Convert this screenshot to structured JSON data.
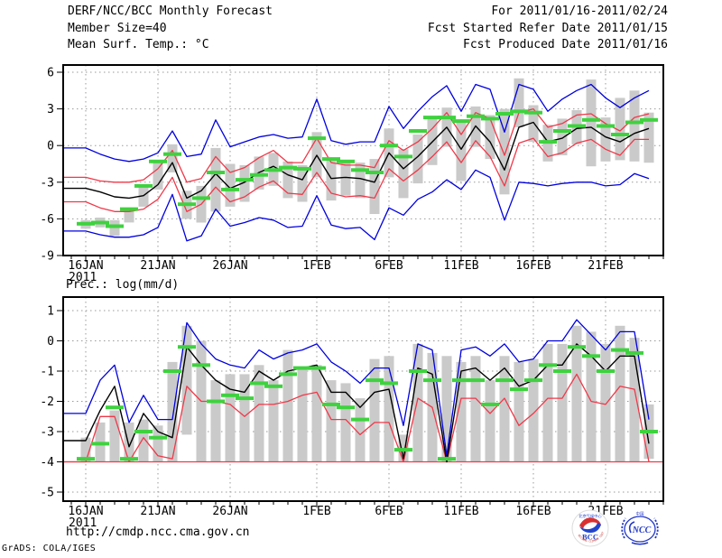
{
  "header": {
    "title": "DERF/NCC/BCC Monthly Forecast",
    "member_size": "Member Size=40",
    "forecast_range": "For 2011/01/16-2011/02/24",
    "refer_date": "Fcst Started Refer Date 2011/01/15",
    "produced_date": "Fcst Produced Date 2011/01/16"
  },
  "footer": {
    "url": "http://cmdp.ncc.cma.gov.cn",
    "credit": "GrADS: COLA/IGES",
    "logos": [
      {
        "name": "bcc-logo",
        "label": "BCC",
        "top_text": "北京气候中心",
        "arc_text": "BEIJING CLIMATE CENTER"
      },
      {
        "name": "ncc-logo",
        "label": "NCC",
        "top_text": "中国"
      }
    ]
  },
  "colors": {
    "blue": "#0000e0",
    "red": "#f03848",
    "green": "#3fd23f",
    "bar_gray": "#cacaca",
    "grid": "#9a9a9a",
    "text": "#000000",
    "bcc_red": "#d93030",
    "bcc_blue": "#2244cc",
    "ncc_blue": "#2238c8"
  },
  "dates": [
    "2011-01-16",
    "2011-01-17",
    "2011-01-18",
    "2011-01-19",
    "2011-01-20",
    "2011-01-21",
    "2011-01-22",
    "2011-01-23",
    "2011-01-24",
    "2011-01-25",
    "2011-01-26",
    "2011-01-27",
    "2011-01-28",
    "2011-01-29",
    "2011-01-30",
    "2011-01-31",
    "2011-02-01",
    "2011-02-02",
    "2011-02-03",
    "2011-02-04",
    "2011-02-05",
    "2011-02-06",
    "2011-02-07",
    "2011-02-08",
    "2011-02-09",
    "2011-02-10",
    "2011-02-11",
    "2011-02-12",
    "2011-02-13",
    "2011-02-14",
    "2011-02-15",
    "2011-02-16",
    "2011-02-17",
    "2011-02-18",
    "2011-02-19",
    "2011-02-20",
    "2011-02-21",
    "2011-02-22",
    "2011-02-23",
    "2011-02-24"
  ],
  "chart_data": [
    {
      "type": "line",
      "name": "temperature-chart",
      "title": "Mean Surf. Temp.: °C",
      "ylim": [
        -9,
        6
      ],
      "grid": true,
      "legend": "none",
      "yticks": [
        {
          "value": 6,
          "label": "6"
        },
        {
          "value": 3,
          "label": "3"
        },
        {
          "value": 0,
          "label": "0"
        },
        {
          "value": -3,
          "label": "-3"
        },
        {
          "value": -6,
          "label": "-6"
        },
        {
          "value": -9,
          "label": "-9"
        }
      ],
      "xticks": [
        {
          "day": 0,
          "label": "16JAN",
          "sublabel": "2011"
        },
        {
          "day": 5,
          "label": "21JAN"
        },
        {
          "day": 10,
          "label": "26JAN"
        },
        {
          "day": 16,
          "label": "1FEB"
        },
        {
          "day": 21,
          "label": "6FEB"
        },
        {
          "day": 26,
          "label": "11FEB"
        },
        {
          "day": 31,
          "label": "16FEB"
        },
        {
          "day": 36,
          "label": "21FEB"
        }
      ],
      "series": [
        {
          "name": "upper-blue",
          "color": "#0000e0",
          "values": [
            -0.2,
            -0.7,
            -1.1,
            -1.3,
            -1.1,
            -0.6,
            1.2,
            -0.9,
            -0.7,
            2.1,
            -0.1,
            0.3,
            0.7,
            0.9,
            0.6,
            0.7,
            3.8,
            0.4,
            0.1,
            0.3,
            0.3,
            3.2,
            1.4,
            2.8,
            4.0,
            4.9,
            2.8,
            5.0,
            4.6,
            1.1,
            5.0,
            4.6,
            2.8,
            3.8,
            4.5,
            5.0,
            3.9,
            3.1,
            3.9,
            4.5
          ]
        },
        {
          "name": "upper-red",
          "color": "#f03848",
          "values": [
            -2.6,
            -2.9,
            -3.0,
            -3.0,
            -2.8,
            -1.9,
            -0.4,
            -3.0,
            -2.7,
            -0.9,
            -2.2,
            -1.8,
            -1.0,
            -0.4,
            -1.4,
            -1.4,
            0.6,
            -1.4,
            -1.6,
            -1.6,
            -1.8,
            0.4,
            -0.4,
            0.3,
            1.4,
            2.7,
            0.9,
            2.7,
            2.2,
            -0.8,
            2.7,
            3.0,
            1.5,
            1.8,
            2.5,
            2.6,
            1.8,
            1.2,
            2.3,
            2.6
          ]
        },
        {
          "name": "lower-red",
          "color": "#f03848",
          "values": [
            -4.6,
            -5.1,
            -5.4,
            -5.4,
            -5.2,
            -4.4,
            -2.6,
            -5.4,
            -4.8,
            -3.4,
            -4.6,
            -4.2,
            -3.4,
            -2.9,
            -3.9,
            -4.0,
            -2.2,
            -3.9,
            -4.2,
            -4.1,
            -4.3,
            -1.9,
            -2.9,
            -2.0,
            -0.9,
            0.3,
            -1.4,
            0.4,
            -0.9,
            -3.3,
            0.2,
            0.6,
            -0.9,
            -0.6,
            0.2,
            0.5,
            -0.3,
            -0.8,
            0.5,
            0.5
          ]
        },
        {
          "name": "lower-blue",
          "color": "#0000e0",
          "values": [
            -7.0,
            -7.3,
            -7.5,
            -7.5,
            -7.3,
            -6.7,
            -4.0,
            -7.8,
            -7.4,
            -5.2,
            -6.6,
            -6.3,
            -5.9,
            -6.1,
            -6.7,
            -6.6,
            -4.1,
            -6.5,
            -6.8,
            -6.7,
            -7.7,
            -5.1,
            -5.7,
            -4.4,
            -3.8,
            -2.8,
            -3.6,
            -2.0,
            -2.6,
            -6.1,
            -3.0,
            -3.1,
            -3.3,
            -3.1,
            -3.0,
            -3.0,
            -3.3,
            -3.2,
            -2.3,
            -2.7
          ]
        },
        {
          "name": "mean-black",
          "color": "#000000",
          "values": [
            -3.5,
            -3.8,
            -4.2,
            -4.3,
            -4.1,
            -3.2,
            -1.4,
            -4.3,
            -3.7,
            -2.3,
            -3.5,
            -3.0,
            -2.2,
            -1.7,
            -2.4,
            -2.8,
            -0.8,
            -2.7,
            -2.6,
            -2.7,
            -3.0,
            -0.6,
            -1.9,
            -0.9,
            0.3,
            1.5,
            -0.3,
            1.6,
            0.3,
            -2.0,
            1.5,
            1.9,
            0.3,
            0.6,
            1.4,
            1.5,
            0.7,
            0.3,
            1.0,
            1.4
          ]
        }
      ],
      "obs": {
        "name": "observation-green",
        "color": "#3fd23f",
        "values": [
          -6.4,
          -6.3,
          -6.6,
          -5.2,
          -3.3,
          -1.3,
          -0.7,
          -4.8,
          -4.3,
          -2.2,
          -3.6,
          -2.8,
          -2.4,
          -2.0,
          -1.8,
          -1.9,
          0.6,
          -1.1,
          -1.3,
          -2.0,
          -2.2,
          0.0,
          -0.9,
          1.2,
          2.3,
          2.3,
          2.0,
          2.4,
          2.2,
          2.6,
          2.8,
          2.7,
          0.3,
          1.2,
          1.6,
          2.1,
          1.6,
          0.9,
          1.9,
          2.1
        ]
      },
      "bars": {
        "name": "member-spread",
        "color": "#cacaca",
        "low": [
          -6.8,
          -6.7,
          -7.4,
          -6.3,
          -5.0,
          -3.6,
          -2.2,
          -6.0,
          -6.3,
          -5.4,
          -5.0,
          -4.6,
          -3.6,
          -3.3,
          -4.3,
          -4.6,
          -2.6,
          -4.5,
          -4.1,
          -4.3,
          -5.6,
          -2.6,
          -4.3,
          -3.1,
          -1.6,
          -0.1,
          -2.9,
          -0.1,
          -1.1,
          -4.0,
          1.5,
          0.3,
          -1.3,
          -0.8,
          0.1,
          -1.7,
          -1.3,
          -1.2,
          -1.3,
          -1.4
        ],
        "high": [
          -6.1,
          -5.9,
          -6.1,
          -5.1,
          -3.3,
          -1.3,
          0.1,
          -3.7,
          -3.3,
          -0.2,
          -1.5,
          -1.6,
          -0.9,
          -0.6,
          -1.3,
          -1.6,
          1.1,
          -1.1,
          -1.3,
          -1.4,
          -1.1,
          1.4,
          -0.3,
          0.9,
          2.4,
          3.1,
          2.1,
          3.2,
          2.5,
          3.0,
          5.5,
          3.3,
          1.7,
          2.2,
          2.9,
          5.4,
          2.3,
          3.9,
          4.5,
          2.7
        ]
      }
    },
    {
      "type": "line",
      "name": "precipitation-chart",
      "title": "Prec.: log(mm/d)",
      "ylim": [
        -5,
        1
      ],
      "grid": true,
      "legend": "none",
      "floor_value": -4,
      "yticks": [
        {
          "value": 1,
          "label": "1"
        },
        {
          "value": 0,
          "label": "0"
        },
        {
          "value": -1,
          "label": "-1"
        },
        {
          "value": -2,
          "label": "-2"
        },
        {
          "value": -3,
          "label": "-3"
        },
        {
          "value": -4,
          "label": "-4"
        },
        {
          "value": -5,
          "label": "-5"
        }
      ],
      "xticks": [
        {
          "day": 0,
          "label": "16JAN",
          "sublabel": "2011"
        },
        {
          "day": 5,
          "label": "21JAN"
        },
        {
          "day": 10,
          "label": "26JAN"
        },
        {
          "day": 16,
          "label": "1FEB"
        },
        {
          "day": 21,
          "label": "6FEB"
        },
        {
          "day": 26,
          "label": "11FEB"
        },
        {
          "day": 31,
          "label": "16FEB"
        },
        {
          "day": 36,
          "label": "21FEB"
        }
      ],
      "series": [
        {
          "name": "upper-blue",
          "color": "#0000e0",
          "values": [
            -2.4,
            -1.3,
            -0.8,
            -2.7,
            -1.8,
            -2.6,
            -2.6,
            0.6,
            -0.1,
            -0.6,
            -0.8,
            -0.9,
            -0.3,
            -0.6,
            -0.4,
            -0.3,
            -0.1,
            -0.7,
            -1.0,
            -1.4,
            -0.9,
            -0.9,
            -2.8,
            -0.1,
            -0.3,
            -3.8,
            -0.3,
            -0.2,
            -0.5,
            -0.1,
            -0.7,
            -0.6,
            0.0,
            0.0,
            0.7,
            0.2,
            -0.3,
            0.3,
            0.3,
            -2.6
          ]
        },
        {
          "name": "lower-red",
          "color": "#f03848",
          "values": [
            -4.0,
            -2.5,
            -2.5,
            -4.0,
            -3.2,
            -3.8,
            -3.9,
            -1.5,
            -2.0,
            -2.0,
            -2.1,
            -2.5,
            -2.1,
            -2.1,
            -2.0,
            -1.8,
            -1.7,
            -2.6,
            -2.6,
            -3.1,
            -2.7,
            -2.7,
            -4.0,
            -1.9,
            -2.2,
            -4.0,
            -1.9,
            -1.9,
            -2.4,
            -1.9,
            -2.8,
            -2.4,
            -1.9,
            -1.9,
            -1.1,
            -2.0,
            -2.1,
            -1.5,
            -1.6,
            -4.0
          ]
        },
        {
          "name": "mean-black",
          "color": "#000000",
          "values": [
            -3.3,
            -2.3,
            -1.5,
            -3.5,
            -2.4,
            -3.0,
            -3.2,
            -0.2,
            -0.8,
            -1.3,
            -1.6,
            -1.7,
            -1.0,
            -1.3,
            -1.0,
            -0.9,
            -0.8,
            -1.7,
            -1.7,
            -2.2,
            -1.7,
            -1.6,
            -3.9,
            -0.9,
            -1.1,
            -4.0,
            -1.0,
            -0.9,
            -1.3,
            -0.9,
            -1.5,
            -1.3,
            -0.8,
            -0.8,
            -0.1,
            -0.5,
            -1.0,
            -0.5,
            -0.5,
            -3.4
          ]
        }
      ],
      "obs": {
        "name": "observation-green",
        "color": "#3fd23f",
        "values": [
          -3.9,
          -3.4,
          -2.2,
          -3.9,
          -3.0,
          -3.2,
          -1.0,
          -0.2,
          -0.8,
          -2.0,
          -1.8,
          -1.9,
          -1.4,
          -1.5,
          -1.1,
          -0.9,
          -0.9,
          -2.1,
          -2.2,
          -2.6,
          -1.3,
          -1.4,
          -3.6,
          -1.0,
          -1.3,
          -3.9,
          -1.3,
          -1.3,
          -2.1,
          -1.3,
          -1.6,
          -1.3,
          -0.8,
          -1.0,
          -0.2,
          -0.5,
          -1.0,
          -0.3,
          -0.4,
          -3.0
        ]
      },
      "bars": {
        "name": "member-spread",
        "color": "#cacaca",
        "low": [
          -4.0,
          -4.0,
          -4.0,
          -4.0,
          -4.0,
          -4.0,
          -4.0,
          -3.1,
          -4.0,
          -4.0,
          -4.0,
          -4.0,
          -4.0,
          -4.0,
          -4.0,
          -4.0,
          -4.0,
          -4.0,
          -4.0,
          -4.0,
          -4.0,
          -4.0,
          -4.0,
          -4.0,
          -4.0,
          -4.0,
          -4.0,
          -4.0,
          -4.0,
          -4.0,
          -4.0,
          -4.0,
          -4.0,
          -4.0,
          -4.0,
          -4.0,
          -4.0,
          -4.0,
          -4.0,
          -3.9
        ],
        "high": [
          -3.2,
          -2.7,
          -2.3,
          -2.7,
          -2.6,
          -2.8,
          -0.7,
          0.5,
          0.0,
          -1.3,
          -1.1,
          -1.1,
          -0.8,
          -1.3,
          -0.3,
          -0.9,
          -0.8,
          -1.3,
          -1.4,
          -1.9,
          -0.6,
          -0.5,
          -3.1,
          -0.1,
          -0.4,
          -0.5,
          -0.7,
          -0.5,
          -1.3,
          -0.5,
          -0.7,
          -0.6,
          -0.1,
          -0.1,
          0.5,
          0.3,
          -0.1,
          0.5,
          0.1,
          -2.1
        ]
      }
    }
  ]
}
